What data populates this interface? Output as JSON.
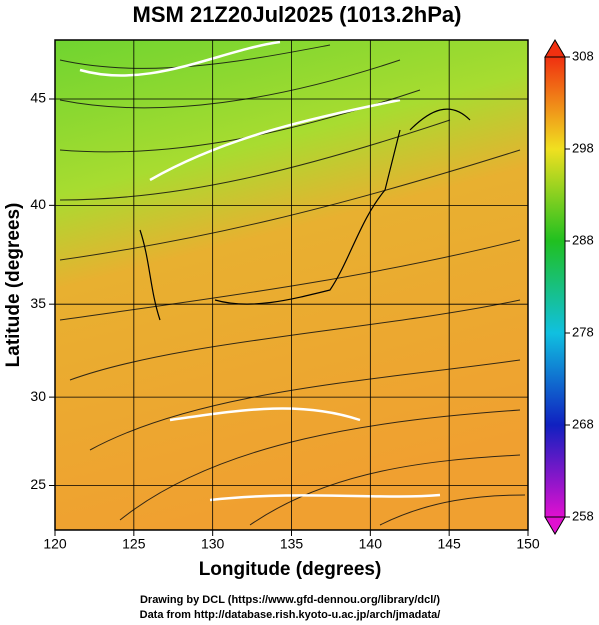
{
  "chart_data": {
    "type": "map",
    "title": "MSM 21Z20Jul2025 (1013.2hPa)",
    "x_label": "Longitude (degrees)",
    "y_label": "Latitude  (degrees)",
    "projection": "mercator",
    "xlim": [
      120,
      150
    ],
    "xticks": [
      120,
      125,
      130,
      135,
      140,
      145,
      150
    ],
    "ylim": [
      22.4,
      47.6
    ],
    "yticks": [
      25,
      30,
      35,
      40,
      45
    ],
    "grid": true,
    "colorbar": {
      "lim": [
        258,
        308
      ],
      "ticks": [
        258,
        268,
        278,
        288,
        298,
        308
      ],
      "colors": [
        "#e010d0",
        "#1020c0",
        "#10c0e0",
        "#20c020",
        "#f0e020",
        "#f03010"
      ]
    },
    "footer": [
      "Drawing by DCL (https://www.gfd-dennou.org/library/dcl/)",
      "Data from http://database.rish.kyoto-u.ac.jp/arch/jmadata/"
    ]
  }
}
